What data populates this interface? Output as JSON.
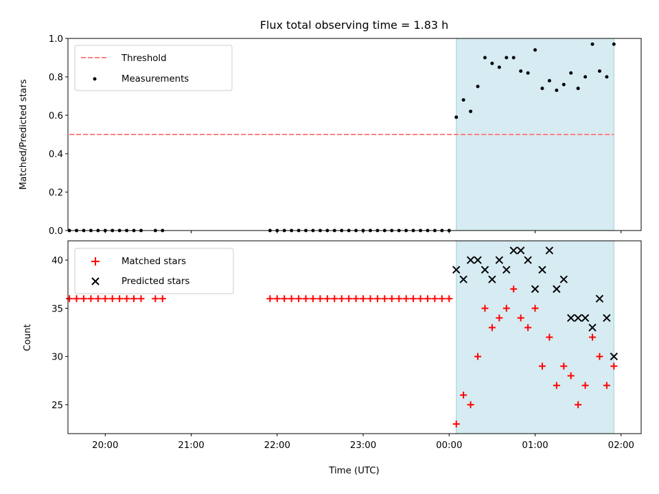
{
  "chart_data": [
    {
      "type": "scatter",
      "title": "Flux total observing time = 1.83 h",
      "xlabel": "",
      "ylabel": "Matched/Predicted stars",
      "ylim": [
        0,
        1.0
      ],
      "yticks": [
        "0.0",
        "0.2",
        "0.4",
        "0.6",
        "0.8",
        "1.0"
      ],
      "xlim": [
        "19:34",
        "02:14"
      ],
      "grid": false,
      "legend_position": "upper-left",
      "shaded_region": {
        "x_start": "00:05",
        "x_end": "01:55",
        "color": "#add8e6"
      },
      "series": [
        {
          "name": "Threshold",
          "style": "dashed-line",
          "color": "#ff7f7f",
          "x": [
            "19:35",
            "01:55"
          ],
          "y": [
            0.5,
            0.5
          ]
        },
        {
          "name": "Measurements",
          "style": "dot",
          "color": "#000000",
          "x": [
            "19:35",
            "19:40",
            "19:45",
            "19:50",
            "19:55",
            "20:00",
            "20:05",
            "20:10",
            "20:15",
            "20:20",
            "20:25",
            "20:35",
            "20:40",
            "21:55",
            "22:00",
            "22:05",
            "22:10",
            "22:15",
            "22:20",
            "22:25",
            "22:30",
            "22:35",
            "22:40",
            "22:45",
            "22:50",
            "22:55",
            "23:00",
            "23:05",
            "23:10",
            "23:15",
            "23:20",
            "23:25",
            "23:30",
            "23:35",
            "23:40",
            "23:45",
            "23:50",
            "23:55",
            "00:00",
            "00:05",
            "00:10",
            "00:15",
            "00:20",
            "00:25",
            "00:30",
            "00:35",
            "00:40",
            "00:45",
            "00:50",
            "00:55",
            "01:00",
            "01:05",
            "01:10",
            "01:15",
            "01:20",
            "01:25",
            "01:30",
            "01:35",
            "01:40",
            "01:45",
            "01:50",
            "01:55"
          ],
          "y": [
            0,
            0,
            0,
            0,
            0,
            0,
            0,
            0,
            0,
            0,
            0,
            0,
            0,
            0,
            0,
            0,
            0,
            0,
            0,
            0,
            0,
            0,
            0,
            0,
            0,
            0,
            0,
            0,
            0,
            0,
            0,
            0,
            0,
            0,
            0,
            0,
            0,
            0,
            0,
            0.59,
            0.68,
            0.62,
            0.75,
            0.9,
            0.87,
            0.85,
            0.9,
            0.9,
            0.83,
            0.82,
            0.94,
            0.74,
            0.78,
            0.73,
            0.76,
            0.82,
            0.74,
            0.8,
            0.97,
            0.83,
            0.8,
            0.97
          ]
        }
      ]
    },
    {
      "type": "scatter",
      "title": "",
      "xlabel": "Time (UTC)",
      "ylabel": "Count",
      "ylim": [
        22,
        42
      ],
      "yticks": [
        "25",
        "30",
        "35",
        "40"
      ],
      "xlim": [
        "19:34",
        "02:14"
      ],
      "xticks": [
        "20:00",
        "21:00",
        "22:00",
        "23:00",
        "00:00",
        "01:00",
        "02:00"
      ],
      "grid": false,
      "legend_position": "upper-left",
      "shaded_region": {
        "x_start": "00:05",
        "x_end": "01:55",
        "color": "#add8e6"
      },
      "series": [
        {
          "name": "Matched stars",
          "style": "plus",
          "color": "#ff0000",
          "x": [
            "19:35",
            "19:40",
            "19:45",
            "19:50",
            "19:55",
            "20:00",
            "20:05",
            "20:10",
            "20:15",
            "20:20",
            "20:25",
            "20:35",
            "20:40",
            "21:55",
            "22:00",
            "22:05",
            "22:10",
            "22:15",
            "22:20",
            "22:25",
            "22:30",
            "22:35",
            "22:40",
            "22:45",
            "22:50",
            "22:55",
            "23:00",
            "23:05",
            "23:10",
            "23:15",
            "23:20",
            "23:25",
            "23:30",
            "23:35",
            "23:40",
            "23:45",
            "23:50",
            "23:55",
            "00:00",
            "00:05",
            "00:10",
            "00:15",
            "00:20",
            "00:25",
            "00:30",
            "00:35",
            "00:40",
            "00:45",
            "00:50",
            "00:55",
            "01:00",
            "01:05",
            "01:10",
            "01:15",
            "01:20",
            "01:25",
            "01:30",
            "01:35",
            "01:40",
            "01:45",
            "01:50",
            "01:55"
          ],
          "y": [
            36,
            36,
            36,
            36,
            36,
            36,
            36,
            36,
            36,
            36,
            36,
            36,
            36,
            36,
            36,
            36,
            36,
            36,
            36,
            36,
            36,
            36,
            36,
            36,
            36,
            36,
            36,
            36,
            36,
            36,
            36,
            36,
            36,
            36,
            36,
            36,
            36,
            36,
            36,
            23,
            26,
            25,
            30,
            35,
            33,
            34,
            35,
            37,
            34,
            33,
            35,
            29,
            32,
            27,
            29,
            28,
            25,
            27,
            32,
            30,
            27,
            29
          ]
        },
        {
          "name": "Predicted stars",
          "style": "x",
          "color": "#000000",
          "x": [
            "00:05",
            "00:10",
            "00:15",
            "00:20",
            "00:25",
            "00:30",
            "00:35",
            "00:40",
            "00:45",
            "00:50",
            "00:55",
            "01:00",
            "01:05",
            "01:10",
            "01:15",
            "01:20",
            "01:25",
            "01:30",
            "01:35",
            "01:40",
            "01:45",
            "01:50",
            "01:55"
          ],
          "y": [
            39,
            38,
            40,
            40,
            39,
            38,
            40,
            39,
            41,
            41,
            40,
            37,
            39,
            41,
            37,
            38,
            34,
            34,
            34,
            33,
            36,
            34,
            30
          ]
        }
      ]
    }
  ]
}
